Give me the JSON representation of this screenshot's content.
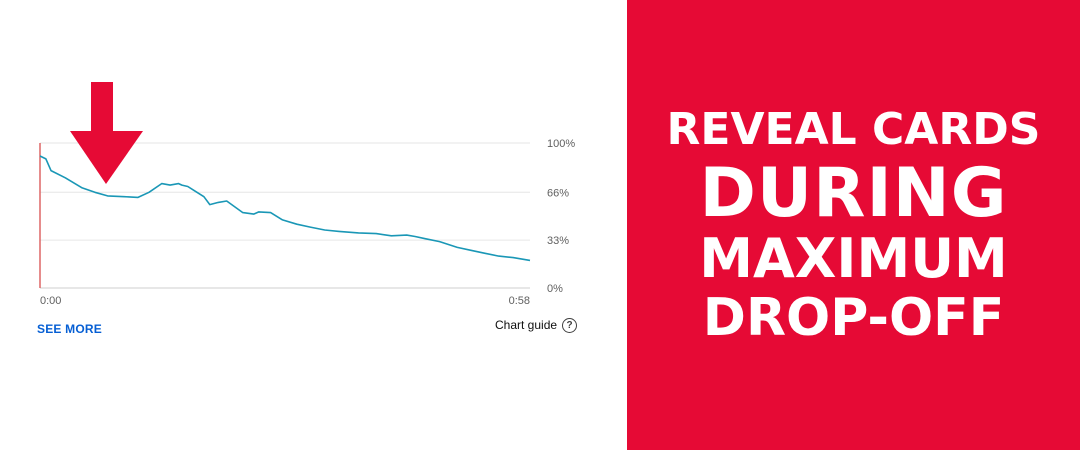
{
  "chart_data": {
    "type": "line",
    "x_axis_labels": [
      "0:00",
      "0:58"
    ],
    "y_axis_labels": [
      "100%",
      "66%",
      "33%",
      "0%"
    ],
    "x_range_seconds": [
      0,
      58
    ],
    "ylim": [
      0,
      100
    ],
    "grid": true,
    "series": [
      {
        "color": "#1a97b6",
        "x": [
          0,
          0.7,
          1.3,
          3,
          5,
          6.5,
          8,
          10,
          11.6,
          12.9,
          14.4,
          15.4,
          16.4,
          16.8,
          17.5,
          18.3,
          19.4,
          20.1,
          21.1,
          22.1,
          24,
          25.3,
          25.9,
          27.3,
          28.7,
          30.4,
          32,
          33.7,
          35.4,
          37.7,
          39.8,
          41.6,
          43.4,
          44.4,
          45.6,
          47.3,
          49.4,
          51,
          52.6,
          54.3,
          56,
          58
        ],
        "y": [
          91,
          89,
          81,
          76,
          69,
          66,
          63.5,
          63,
          62.5,
          66,
          72,
          71,
          72,
          71,
          70,
          67,
          63,
          57.5,
          59,
          60,
          52,
          51,
          52.5,
          52,
          47,
          44,
          42,
          40,
          39,
          38,
          37.5,
          36,
          36.5,
          35.5,
          34,
          32,
          28,
          26,
          24,
          22,
          21,
          19
        ]
      }
    ],
    "annotation": "red-down-arrow"
  },
  "actions": {
    "see_more_label": "SEE MORE",
    "chart_guide_label": "Chart guide",
    "help_icon": "help-circle-icon"
  },
  "promo": {
    "background_color": "#e60a35",
    "text_color": "#ffffff",
    "lines": [
      "REVEAL CARDS",
      "DURING",
      "MAXIMUM",
      "DROP-OFF"
    ]
  },
  "colors": {
    "line": "#1a97b6",
    "arrow": "#e60a35",
    "grid": "#e6e6e6",
    "playhead": "#d94f4f"
  }
}
